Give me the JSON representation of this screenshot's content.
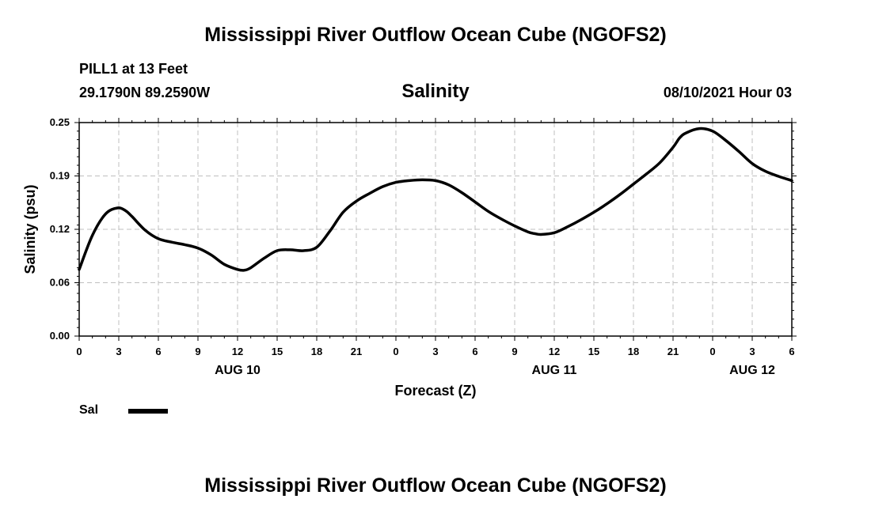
{
  "header": {
    "title": "Mississippi River Outflow Ocean Cube (NGOFS2)",
    "station": "PILL1 at 13 Feet",
    "coords": "29.1790N  89.2590W",
    "variable": "Salinity",
    "datetime": "08/10/2021 Hour 03"
  },
  "footer": {
    "title": "Mississippi River Outflow Ocean Cube (NGOFS2)"
  },
  "legend": {
    "entries": [
      {
        "label": "Sal",
        "color": "#000000"
      }
    ]
  },
  "chart_data": {
    "type": "line",
    "title": "Salinity",
    "xlabel": "Forecast (Z)",
    "ylabel": "Salinity (psu)",
    "ylim": [
      0,
      0.25
    ],
    "xlim": [
      0,
      54
    ],
    "yticks": [
      "0.00",
      "0.06",
      "0.12",
      "0.19",
      "0.25"
    ],
    "ytick_values": [
      0,
      0.0625,
      0.125,
      0.1875,
      0.25
    ],
    "xticks": [
      "0",
      "3",
      "6",
      "9",
      "12",
      "15",
      "18",
      "21",
      "0",
      "3",
      "6",
      "9",
      "12",
      "15",
      "18",
      "21",
      "0",
      "3",
      "6"
    ],
    "date_labels": [
      {
        "label": "AUG 10",
        "at_hour": 12
      },
      {
        "label": "AUG 11",
        "at_hour": 36
      },
      {
        "label": "AUG 12",
        "at_hour": 51
      }
    ],
    "grid": true,
    "series": [
      {
        "name": "Sal",
        "color": "#000000",
        "x": [
          0,
          1,
          2,
          2.9,
          3.5,
          4,
          5,
          6,
          7,
          8,
          9,
          10,
          11,
          12,
          12.5,
          13,
          14,
          15,
          16,
          17,
          18,
          19,
          20,
          21,
          22,
          23,
          24,
          25,
          26,
          27,
          28,
          29,
          30,
          31,
          32,
          33,
          34,
          34.5,
          35,
          36,
          37,
          38,
          39,
          40,
          41,
          42,
          43,
          44,
          45,
          45.5,
          46,
          47,
          48,
          49,
          50,
          51,
          52,
          53,
          54
        ],
        "values": [
          0.078,
          0.118,
          0.143,
          0.15,
          0.147,
          0.14,
          0.124,
          0.114,
          0.11,
          0.107,
          0.103,
          0.095,
          0.084,
          0.078,
          0.077,
          0.08,
          0.091,
          0.1,
          0.101,
          0.1,
          0.104,
          0.123,
          0.145,
          0.158,
          0.167,
          0.175,
          0.18,
          0.182,
          0.183,
          0.182,
          0.177,
          0.168,
          0.157,
          0.146,
          0.137,
          0.129,
          0.122,
          0.12,
          0.119,
          0.121,
          0.128,
          0.136,
          0.145,
          0.155,
          0.166,
          0.178,
          0.19,
          0.203,
          0.221,
          0.232,
          0.238,
          0.243,
          0.24,
          0.229,
          0.216,
          0.202,
          0.193,
          0.187,
          0.182
        ]
      }
    ]
  }
}
